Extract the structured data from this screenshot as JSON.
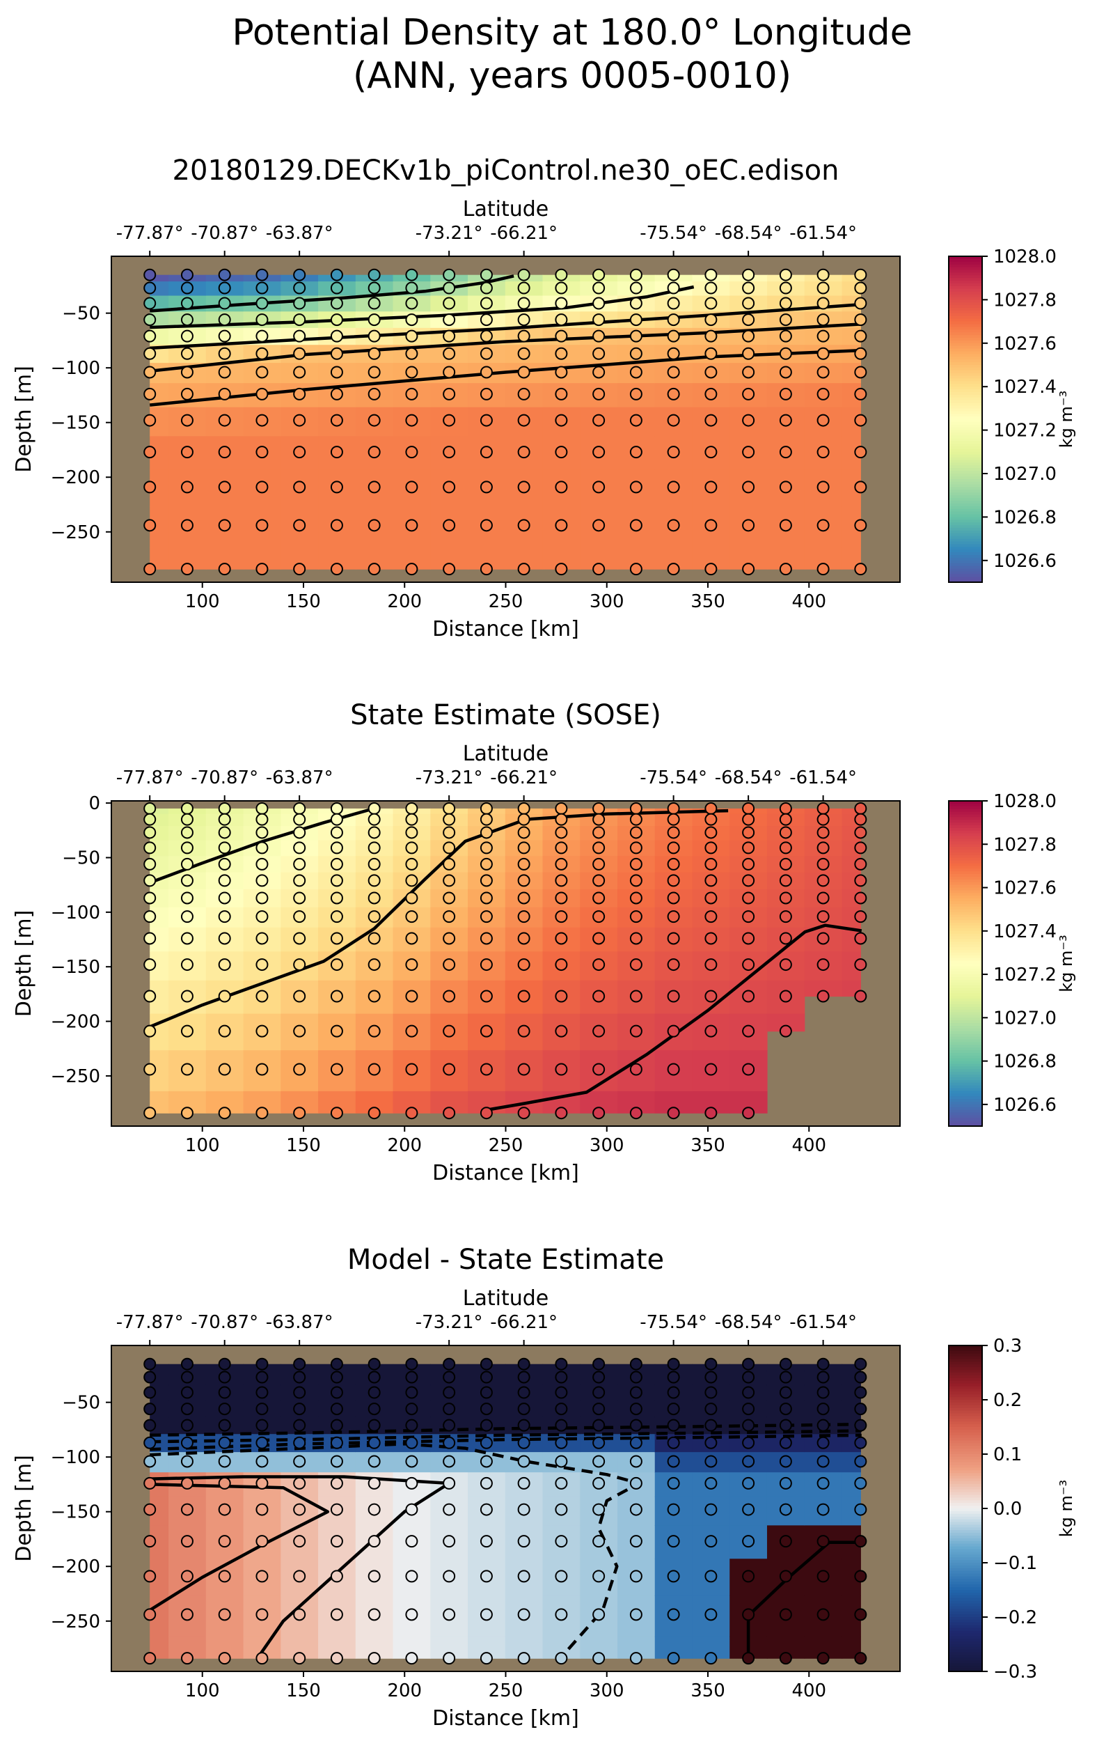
{
  "suptitle": {
    "line1": "Potential Density at 180.0° Longitude",
    "line2": "(ANN, years 0005-0010)"
  },
  "colors": {
    "land": "#8c7a5f",
    "contour": "#000000"
  },
  "chart_data": [
    {
      "type": "heatmap",
      "title": "20180129.DECKv1b_piControl.ne30_oEC.edison",
      "xlabel": "Distance [km]",
      "ylabel": "Depth [m]",
      "top_xlabel": "Latitude",
      "top_ticks": [
        {
          "distance": 74,
          "label": "-77.87°"
        },
        {
          "distance": 111,
          "label": "-70.87°"
        },
        {
          "distance": 148,
          "label": "-63.87°"
        },
        {
          "distance": 222,
          "label": "-73.21°"
        },
        {
          "distance": 259,
          "label": "-66.21°"
        },
        {
          "distance": 333,
          "label": "-75.54°"
        },
        {
          "distance": 370,
          "label": "-68.54°"
        },
        {
          "distance": 407,
          "label": "-61.54°"
        }
      ],
      "xlim": [
        55,
        445
      ],
      "ylim": [
        -296,
        2
      ],
      "xticks": [
        100,
        150,
        200,
        250,
        300,
        350,
        400
      ],
      "yticks": [
        -50,
        -100,
        -150,
        -200,
        -250
      ],
      "colorbar": {
        "label": "kg m⁻³",
        "ticks": [
          "1028.0",
          "1027.8",
          "1027.6",
          "1027.4",
          "1027.2",
          "1027.0",
          "1026.8",
          "1026.6"
        ],
        "tick_values": [
          1028.0,
          1027.8,
          1027.6,
          1027.4,
          1027.2,
          1027.0,
          1026.8,
          1026.6
        ],
        "range": [
          1026.5,
          1028.0
        ],
        "colormap": "Spectral_r"
      },
      "x": [
        74,
        92.5,
        111,
        129.5,
        148,
        166.5,
        185,
        203.5,
        222,
        240.5,
        259,
        277.5,
        296,
        314.5,
        333,
        351.5,
        370,
        388.5,
        407,
        425.5
      ],
      "depths": [
        -15,
        -27,
        -41,
        -56,
        -71,
        -87,
        -104,
        -124,
        -148,
        -177,
        -209,
        -244,
        -284
      ],
      "mask_bottom": [
        -284,
        -284,
        -284,
        -284,
        -284,
        -284,
        -284,
        -284,
        -284,
        -284,
        -284,
        -284,
        -284,
        -284,
        -284,
        -284,
        -284,
        -284,
        -284,
        -284
      ],
      "field": {
        "kind": "stratified",
        "top_value": [
          1026.52,
          1026.54,
          1026.56,
          1026.58,
          1026.62,
          1026.68,
          1026.74,
          1026.8,
          1026.88,
          1026.96,
          1027.02,
          1027.08,
          1027.12,
          1027.16,
          1027.2,
          1027.24,
          1027.28,
          1027.32,
          1027.36,
          1027.4
        ],
        "mid_depth": [
          -95,
          -93,
          -91,
          -89,
          -87,
          -85,
          -83,
          -81,
          -79,
          -77,
          -75,
          -73,
          -71,
          -69,
          -67,
          -65,
          -63,
          -61,
          -59,
          -57
        ],
        "bottom_value": 1027.66
      },
      "contours": [
        {
          "style": "solid",
          "points": [
            [
              74,
              -48
            ],
            [
              120,
              -42
            ],
            [
              170,
              -36
            ],
            [
              210,
              -30
            ],
            [
              240,
              -22
            ],
            [
              254,
              -16
            ]
          ]
        },
        {
          "style": "solid",
          "points": [
            [
              74,
              -63
            ],
            [
              150,
              -58
            ],
            [
              220,
              -52
            ],
            [
              280,
              -45
            ],
            [
              320,
              -35
            ],
            [
              343,
              -26
            ]
          ]
        },
        {
          "style": "solid",
          "points": [
            [
              74,
              -82
            ],
            [
              150,
              -74
            ],
            [
              250,
              -64
            ],
            [
              350,
              -52
            ],
            [
              426,
              -42
            ]
          ]
        },
        {
          "style": "solid",
          "points": [
            [
              74,
              -103
            ],
            [
              150,
              -88
            ],
            [
              250,
              -76
            ],
            [
              350,
              -68
            ],
            [
              426,
              -60
            ]
          ]
        },
        {
          "style": "solid",
          "points": [
            [
              74,
              -134
            ],
            [
              150,
              -120
            ],
            [
              250,
              -104
            ],
            [
              350,
              -90
            ],
            [
              426,
              -84
            ]
          ]
        }
      ]
    },
    {
      "type": "heatmap",
      "title": "State Estimate (SOSE)",
      "xlabel": "Distance [km]",
      "ylabel": "Depth [m]",
      "top_xlabel": "Latitude",
      "top_ticks": [
        {
          "distance": 74,
          "label": "-77.87°"
        },
        {
          "distance": 111,
          "label": "-70.87°"
        },
        {
          "distance": 148,
          "label": "-63.87°"
        },
        {
          "distance": 222,
          "label": "-73.21°"
        },
        {
          "distance": 259,
          "label": "-66.21°"
        },
        {
          "distance": 333,
          "label": "-75.54°"
        },
        {
          "distance": 370,
          "label": "-68.54°"
        },
        {
          "distance": 407,
          "label": "-61.54°"
        }
      ],
      "xlim": [
        55,
        445
      ],
      "ylim": [
        -296,
        2
      ],
      "xticks": [
        100,
        150,
        200,
        250,
        300,
        350,
        400
      ],
      "yticks": [
        0,
        -50,
        -100,
        -150,
        -200,
        -250
      ],
      "colorbar": {
        "label": "kg m⁻³",
        "ticks": [
          "1028.0",
          "1027.8",
          "1027.6",
          "1027.4",
          "1027.2",
          "1027.0",
          "1026.8",
          "1026.6"
        ],
        "tick_values": [
          1028.0,
          1027.8,
          1027.6,
          1027.4,
          1027.2,
          1027.0,
          1026.8,
          1026.6
        ],
        "range": [
          1026.5,
          1028.0
        ],
        "colormap": "Spectral_r"
      },
      "x": [
        74,
        92.5,
        111,
        129.5,
        148,
        166.5,
        185,
        203.5,
        222,
        240.5,
        259,
        277.5,
        296,
        314.5,
        333,
        351.5,
        370,
        388.5,
        407,
        425.5
      ],
      "depths": [
        -5,
        -15,
        -27,
        -41,
        -56,
        -71,
        -87,
        -104,
        -124,
        -148,
        -177,
        -209,
        -244,
        -284
      ],
      "mask_bottom": [
        -284,
        -284,
        -284,
        -284,
        -284,
        -284,
        -284,
        -284,
        -284,
        -284,
        -284,
        -284,
        -284,
        -284,
        -284,
        -284,
        -284,
        -209,
        -177,
        -177
      ],
      "field": {
        "kind": "gradient",
        "surface": [
          1027.08,
          1027.1,
          1027.13,
          1027.16,
          1027.2,
          1027.24,
          1027.28,
          1027.33,
          1027.4,
          1027.46,
          1027.52,
          1027.57,
          1027.6,
          1027.63,
          1027.66,
          1027.68,
          1027.7,
          1027.72,
          1027.74,
          1027.76
        ],
        "bottom": [
          1027.5,
          1027.52,
          1027.55,
          1027.58,
          1027.62,
          1027.66,
          1027.7,
          1027.74,
          1027.78,
          1027.8,
          1027.82,
          1027.84,
          1027.86,
          1027.87,
          1027.88,
          1027.88,
          1027.88,
          1027.88,
          1027.88,
          1027.88
        ]
      },
      "contours": [
        {
          "style": "solid",
          "points": [
            [
              74,
              -73
            ],
            [
              100,
              -55
            ],
            [
              130,
              -35
            ],
            [
              160,
              -18
            ],
            [
              183,
              -6
            ]
          ]
        },
        {
          "style": "solid",
          "points": [
            [
              74,
              -205
            ],
            [
              100,
              -185
            ],
            [
              130,
              -165
            ],
            [
              160,
              -145
            ],
            [
              185,
              -115
            ],
            [
              210,
              -70
            ],
            [
              230,
              -35
            ],
            [
              260,
              -15
            ],
            [
              300,
              -10
            ],
            [
              360,
              -7
            ]
          ]
        },
        {
          "style": "solid",
          "points": [
            [
              238,
              -282
            ],
            [
              260,
              -275
            ],
            [
              290,
              -265
            ],
            [
              320,
              -230
            ],
            [
              350,
              -190
            ],
            [
              380,
              -145
            ],
            [
              398,
              -118
            ],
            [
              408,
              -112
            ],
            [
              426,
              -117
            ]
          ]
        }
      ]
    },
    {
      "type": "heatmap",
      "title": "Model - State Estimate",
      "xlabel": "Distance [km]",
      "ylabel": "Depth [m]",
      "top_xlabel": "Latitude",
      "top_ticks": [
        {
          "distance": 74,
          "label": "-77.87°"
        },
        {
          "distance": 111,
          "label": "-70.87°"
        },
        {
          "distance": 148,
          "label": "-63.87°"
        },
        {
          "distance": 222,
          "label": "-73.21°"
        },
        {
          "distance": 259,
          "label": "-66.21°"
        },
        {
          "distance": 333,
          "label": "-75.54°"
        },
        {
          "distance": 370,
          "label": "-68.54°"
        },
        {
          "distance": 407,
          "label": "-61.54°"
        }
      ],
      "xlim": [
        55,
        445
      ],
      "ylim": [
        -296,
        2
      ],
      "xticks": [
        100,
        150,
        200,
        250,
        300,
        350,
        400
      ],
      "yticks": [
        -50,
        -100,
        -150,
        -200,
        -250
      ],
      "colorbar": {
        "label": "kg m⁻³",
        "ticks": [
          "0.3",
          "0.2",
          "0.1",
          "0.0",
          "−0.1",
          "−0.2",
          "−0.3"
        ],
        "tick_values": [
          0.3,
          0.2,
          0.1,
          0.0,
          -0.1,
          -0.2,
          -0.3
        ],
        "range": [
          -0.3,
          0.3
        ],
        "colormap": "RdBu_r"
      },
      "x": [
        74,
        92.5,
        111,
        129.5,
        148,
        166.5,
        185,
        203.5,
        222,
        240.5,
        259,
        277.5,
        296,
        314.5,
        333,
        351.5,
        370,
        388.5,
        407,
        425.5
      ],
      "depths": [
        -15,
        -27,
        -41,
        -56,
        -71,
        -87,
        -104,
        -124,
        -148,
        -177,
        -209,
        -244,
        -284
      ],
      "mask_bottom": [
        -284,
        -284,
        -284,
        -284,
        -284,
        -284,
        -284,
        -284,
        -284,
        -284,
        -284,
        -284,
        -284,
        -284,
        -284,
        -284,
        -284,
        -284,
        -284,
        -284
      ],
      "field": {
        "kind": "anomaly",
        "upper": -0.3,
        "interior_left": 0.12,
        "interior_right": -0.09,
        "patch": {
          "x_min": 370,
          "depth_top": -209,
          "value": 0.3
        },
        "patch2": {
          "x_min": 388.5,
          "depth_top": -177,
          "value": 0.3
        }
      },
      "contours": [
        {
          "style": "dashed",
          "points": [
            [
              74,
              -80
            ],
            [
              150,
              -78
            ],
            [
              250,
              -74
            ],
            [
              350,
              -72
            ],
            [
              426,
              -70
            ]
          ]
        },
        {
          "style": "dashed",
          "points": [
            [
              74,
              -86
            ],
            [
              150,
              -84
            ],
            [
              250,
              -80
            ],
            [
              350,
              -78
            ],
            [
              426,
              -76
            ]
          ]
        },
        {
          "style": "dashed",
          "points": [
            [
              74,
              -93
            ],
            [
              150,
              -88
            ],
            [
              250,
              -84
            ],
            [
              350,
              -82
            ],
            [
              426,
              -80
            ]
          ]
        },
        {
          "style": "dashed",
          "points": [
            [
              74,
              -98
            ],
            [
              200,
              -88
            ],
            [
              230,
              -92
            ],
            [
              260,
              -104
            ],
            [
              300,
              -116
            ],
            [
              316,
              -124
            ],
            [
              300,
              -140
            ],
            [
              296,
              -165
            ],
            [
              305,
              -200
            ],
            [
              298,
              -240
            ],
            [
              278,
              -282
            ]
          ]
        },
        {
          "style": "solid",
          "points": [
            [
              74,
              -120
            ],
            [
              120,
              -118
            ],
            [
              170,
              -118
            ],
            [
              222,
              -124
            ],
            [
              200,
              -150
            ],
            [
              170,
              -200
            ],
            [
              140,
              -250
            ],
            [
              128,
              -282
            ]
          ]
        },
        {
          "style": "solid",
          "points": [
            [
              74,
              -125
            ],
            [
              140,
              -128
            ],
            [
              162,
              -150
            ],
            [
              130,
              -180
            ],
            [
              100,
              -210
            ],
            [
              74,
              -240
            ]
          ]
        },
        {
          "style": "solid",
          "points": [
            [
              370,
              -284
            ],
            [
              370,
              -245
            ],
            [
              390,
              -210
            ],
            [
              410,
              -178
            ],
            [
              426,
              -178
            ]
          ]
        }
      ]
    }
  ]
}
